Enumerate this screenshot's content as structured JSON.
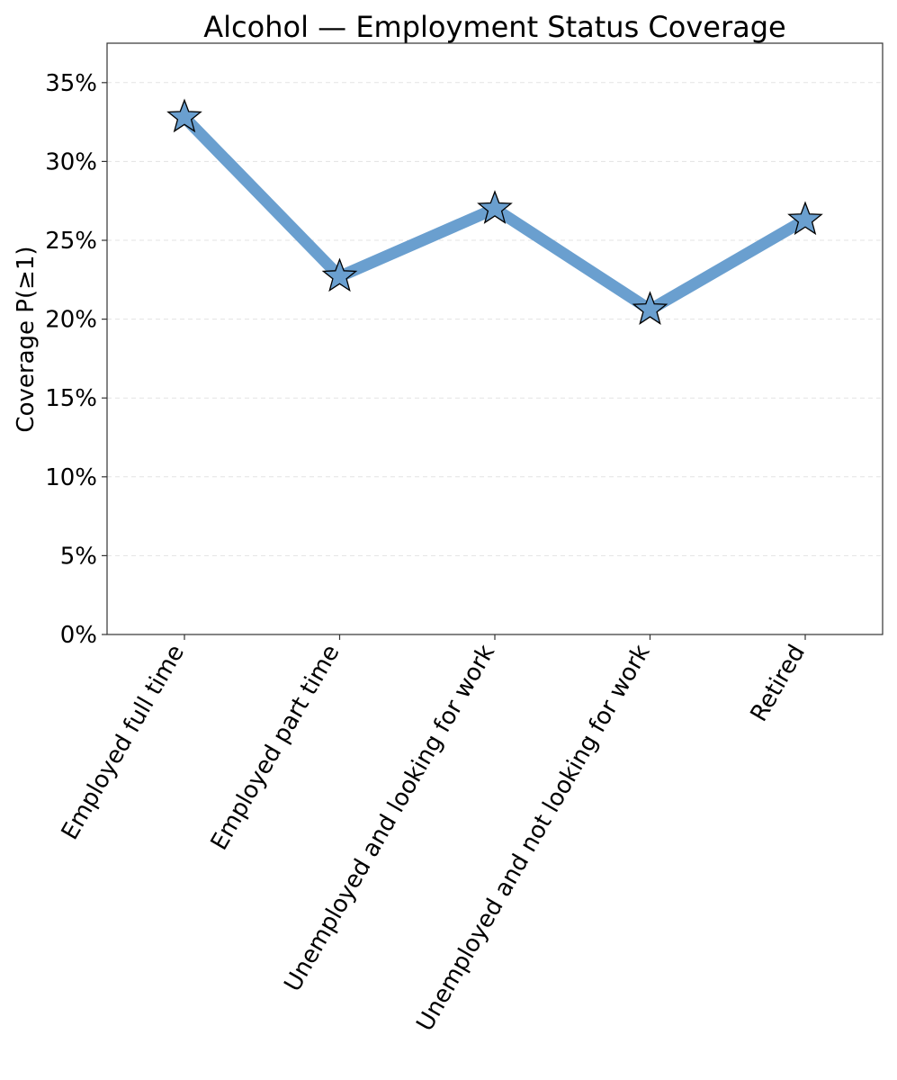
{
  "chart_data": {
    "type": "line",
    "title": "Alcohol — Employment Status Coverage",
    "xlabel": "",
    "ylabel": "Coverage P(≥1)",
    "categories": [
      "Employed full time",
      "Employed part time",
      "Unemployed and looking for work",
      "Unemployed and not looking for work",
      "Retired"
    ],
    "series": [
      {
        "values": [
          0.328,
          0.227,
          0.27,
          0.206,
          0.263
        ]
      }
    ],
    "ylim": [
      0,
      0.375
    ],
    "yticks": [
      0,
      0.05,
      0.1,
      0.15,
      0.2,
      0.25,
      0.3,
      0.35
    ],
    "ytick_labels": [
      "0%",
      "5%",
      "10%",
      "15%",
      "20%",
      "25%",
      "30%",
      "35%"
    ],
    "grid": "horizontal dashed",
    "marker": "star",
    "colors": {
      "line": "#6a9fcf",
      "marker_fill": "#6a9fcf",
      "marker_edge": "#000000",
      "grid": "#e3e3e3",
      "axes": "#333333"
    }
  }
}
